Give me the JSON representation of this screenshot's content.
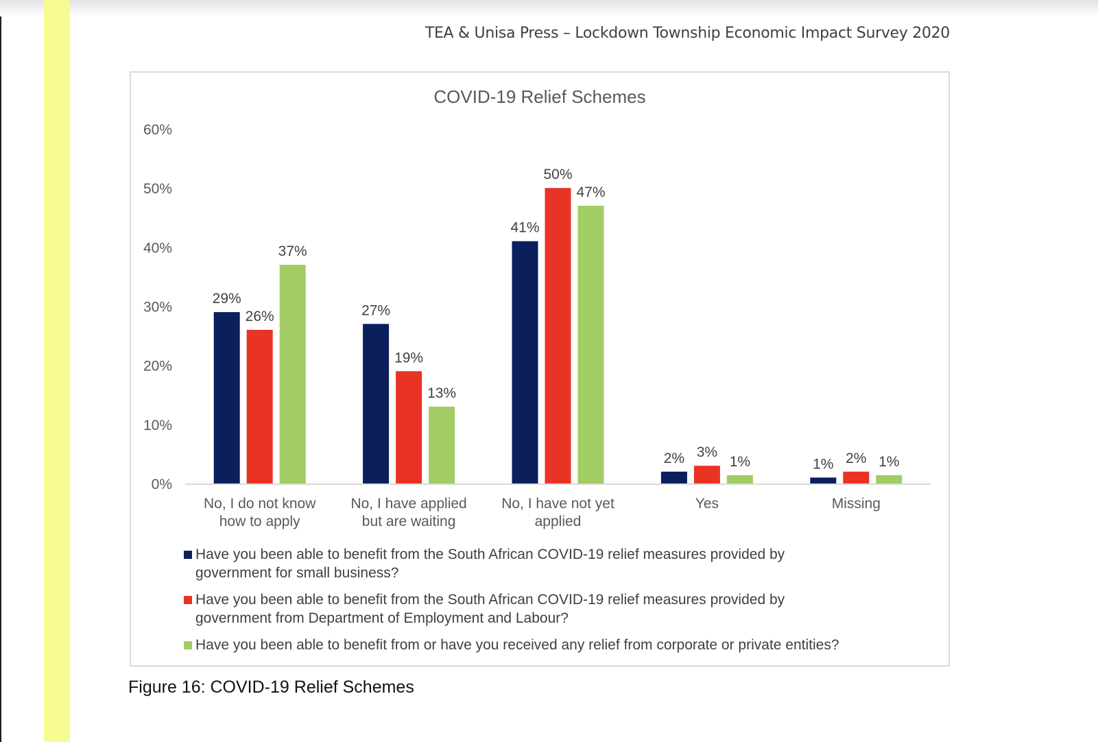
{
  "page": {
    "running_header": "TEA & Unisa Press – Lockdown Township Economic Impact Survey 2020",
    "figure_caption": "Figure 16: COVID-19 Relief Schemes"
  },
  "chart_data": {
    "type": "bar",
    "title": "COVID-19 Relief Schemes",
    "xlabel": "",
    "ylabel": "",
    "ylim": [
      0,
      60
    ],
    "yticks": [
      "0%",
      "10%",
      "20%",
      "30%",
      "40%",
      "50%",
      "60%"
    ],
    "ytick_values": [
      0,
      10,
      20,
      30,
      40,
      50,
      60
    ],
    "grid": false,
    "legend_position": "bottom",
    "categories": [
      [
        "No, I do not know",
        "how to apply"
      ],
      [
        "No, I have applied",
        "but are waiting"
      ],
      [
        "No, I have not yet",
        "applied"
      ],
      [
        "Yes"
      ],
      [
        "Missing"
      ]
    ],
    "series": [
      {
        "name": "Have you been able to benefit from the South African COVID-19 relief measures provided by government for small business?",
        "legend_lines": [
          "Have you been able to benefit from the South African COVID-19 relief measures provided by",
          "government for small business?"
        ],
        "color": "#0a1f5c",
        "values": [
          29,
          27,
          41,
          2,
          1
        ],
        "labels": [
          "29%",
          "27%",
          "41%",
          "2%",
          "1%"
        ]
      },
      {
        "name": "Have you been able to benefit from the South African COVID-19 relief measures provided by government from Department of Employment and Labour?",
        "legend_lines": [
          "Have you been able to benefit from the South African COVID-19 relief measures provided by",
          "government from Department of Employment and Labour?"
        ],
        "color": "#e93325",
        "values": [
          26,
          19,
          50,
          3,
          2
        ],
        "labels": [
          "26%",
          "19%",
          "50%",
          "3%",
          "2%"
        ]
      },
      {
        "name": "Have you been able to benefit from or have you received any relief from corporate or private entities?",
        "legend_lines": [
          "Have you been able to benefit from or have you received any relief from corporate or private entities?"
        ],
        "color": "#a2cc64",
        "values": [
          37,
          13,
          47,
          1.4,
          1.4
        ],
        "labels": [
          "37%",
          "13%",
          "47%",
          "1%",
          "1%"
        ]
      }
    ]
  }
}
